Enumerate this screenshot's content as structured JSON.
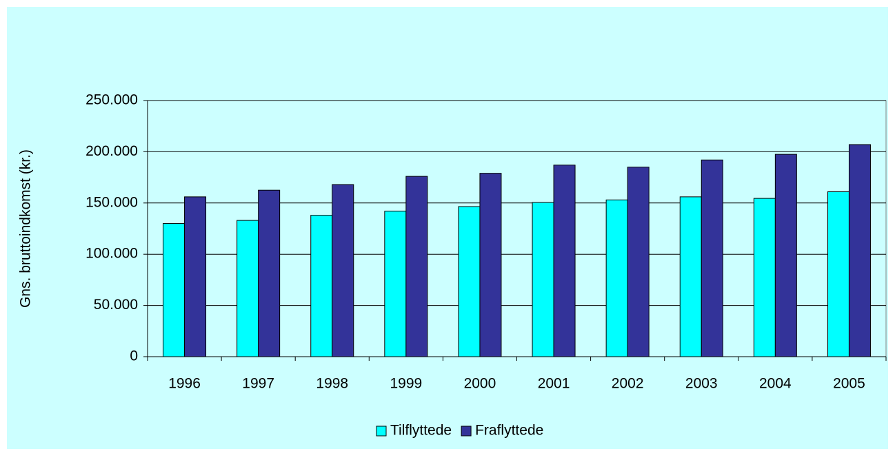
{
  "chart_data": {
    "type": "bar",
    "y_label": "Gns. bruttoindkomst (kr.)",
    "categories": [
      "1996",
      "1997",
      "1998",
      "1999",
      "2000",
      "2001",
      "2002",
      "2003",
      "2004",
      "2005"
    ],
    "series": [
      {
        "name": "Tilflyttede",
        "color": "#00ffff",
        "values": [
          130000,
          133000,
          138000,
          142000,
          146500,
          150500,
          153000,
          156000,
          154500,
          161000
        ]
      },
      {
        "name": "Fraflyttede",
        "color": "#333399",
        "values": [
          156000,
          162500,
          168000,
          176000,
          179000,
          187000,
          185000,
          192000,
          197500,
          207000
        ]
      }
    ],
    "ylim": [
      0,
      250000
    ],
    "yticks": [
      0,
      {
        "value": 50000,
        "label": "50.000"
      },
      {
        "value": 100000,
        "label": "100.000"
      },
      {
        "value": 150000,
        "label": "150.000"
      },
      {
        "value": 200000,
        "label": "200.000"
      },
      {
        "value": 250000,
        "label": "250.000"
      }
    ],
    "grid": true,
    "legend": "bottom"
  }
}
